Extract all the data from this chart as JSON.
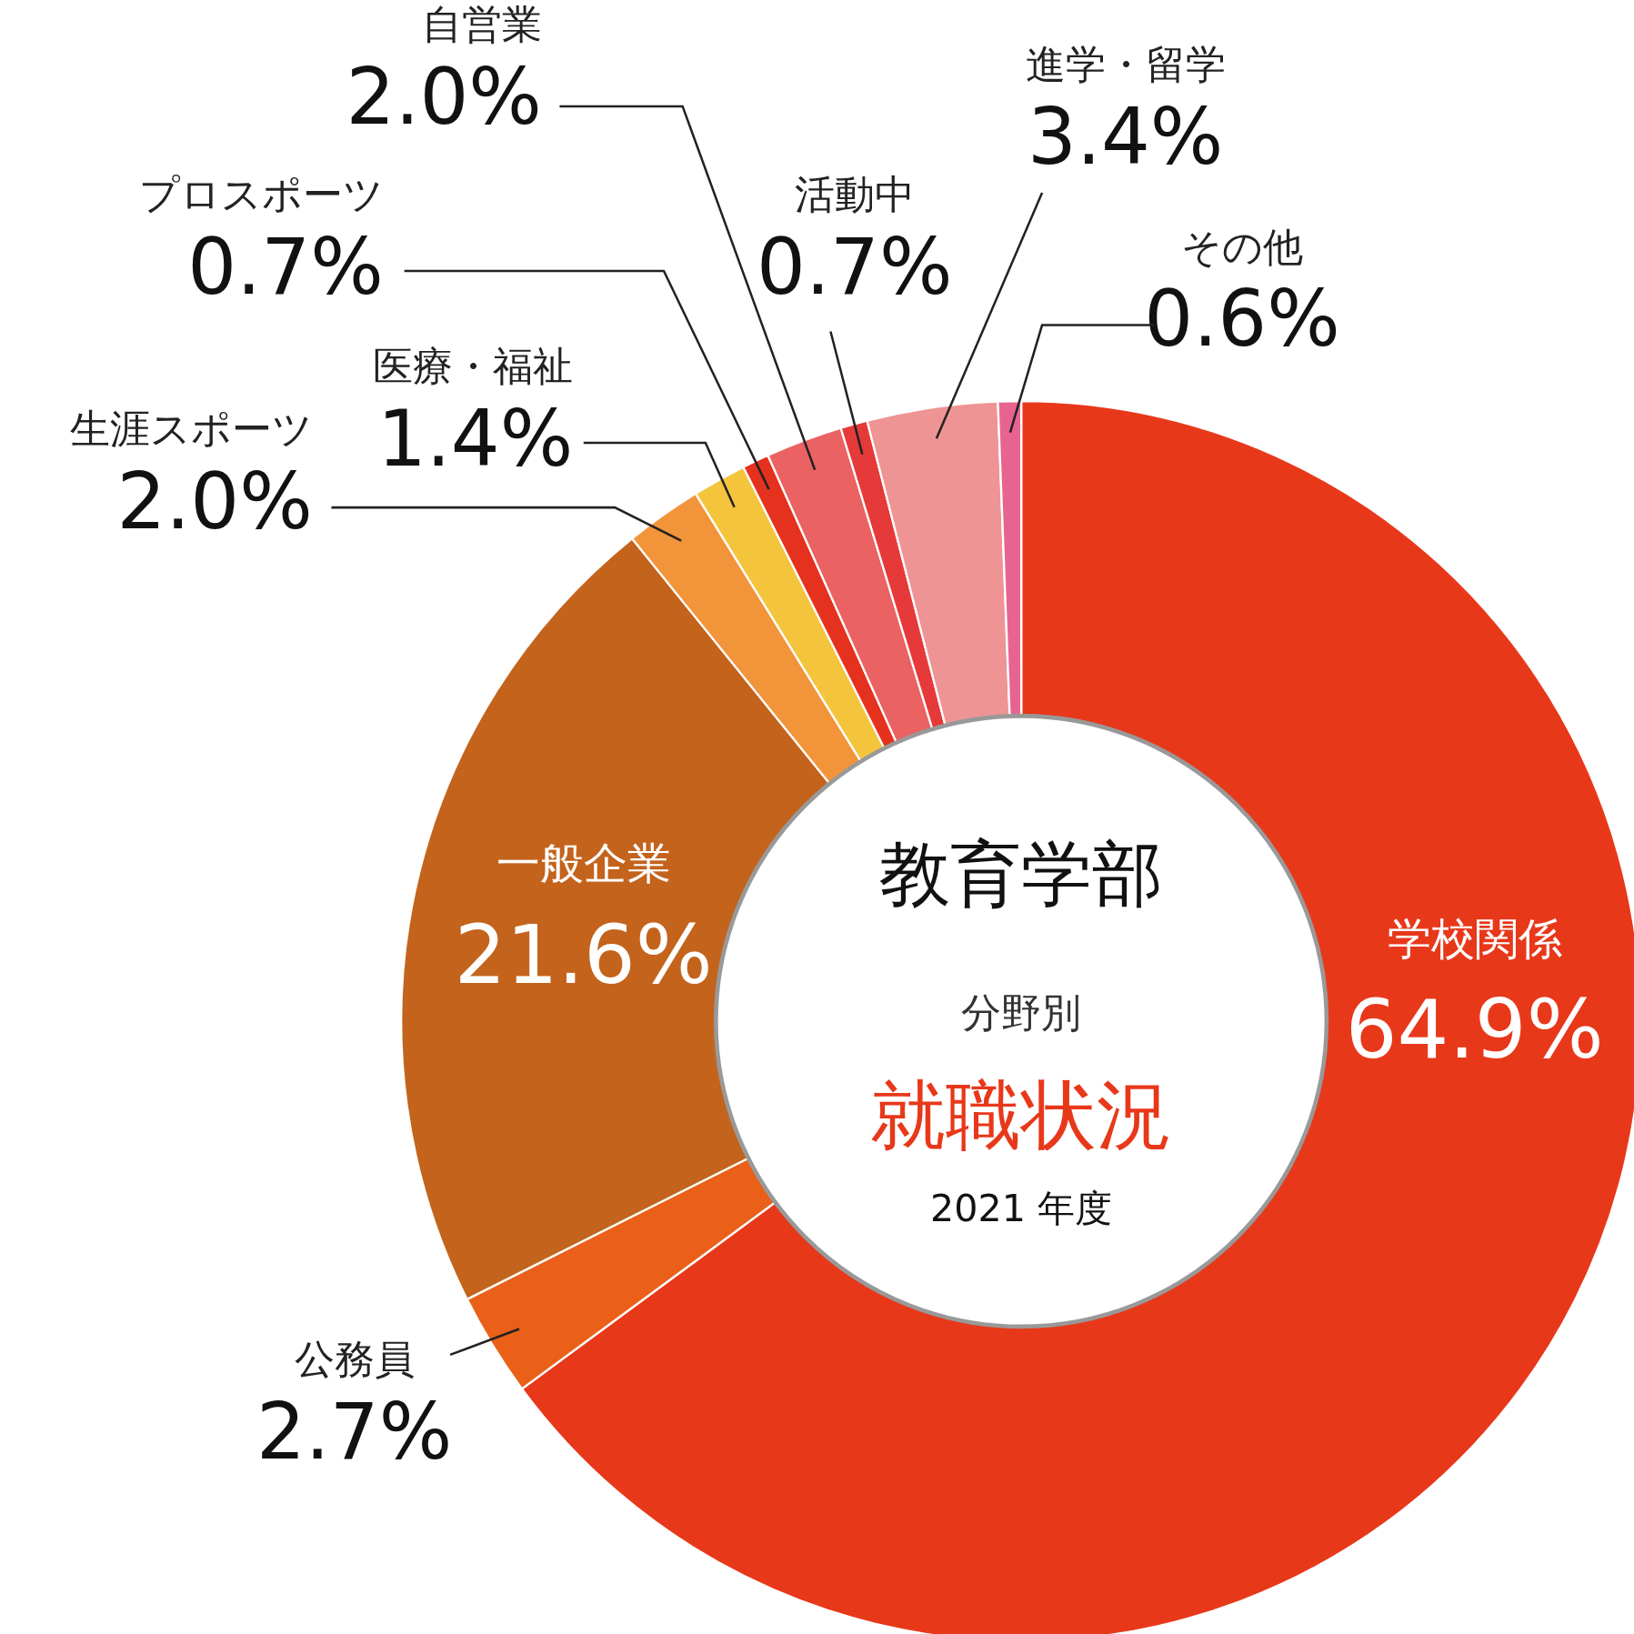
{
  "chart_data": {
    "type": "donut",
    "title": "教育学部",
    "annotations": [
      "分野別",
      "就職状況",
      "2021 年度"
    ],
    "categories": [
      "学校関係",
      "公務員",
      "一般企業",
      "生涯スポーツ",
      "医療・福祉",
      "プロスポーツ",
      "自営業",
      "活動中",
      "進学・留学",
      "その他"
    ],
    "values": [
      64.9,
      2.7,
      21.6,
      2.0,
      1.4,
      0.7,
      2.0,
      0.7,
      3.4,
      0.6
    ],
    "colors": [
      "#e8381a",
      "#ea6019",
      "#c4631c",
      "#f2943a",
      "#f4c43c",
      "#e5321e",
      "#ea6262",
      "#e63a3a",
      "#ef9494",
      "#e76491"
    ],
    "value_labels": [
      "64.9%",
      "2.7%",
      "21.6%",
      "2.0%",
      "1.4%",
      "0.7%",
      "2.0%",
      "0.7%",
      "3.4%",
      "0.6%"
    ]
  }
}
